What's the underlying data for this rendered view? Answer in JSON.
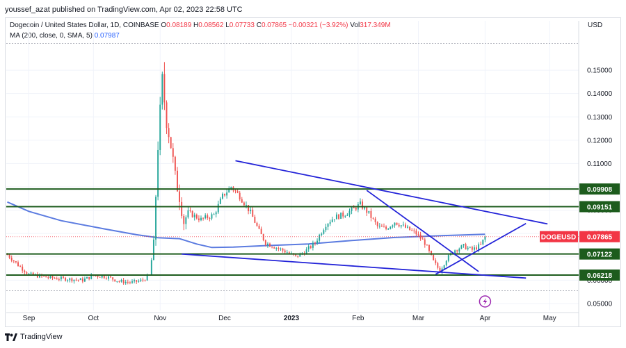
{
  "header": {
    "publisher_text": "youssef_azat published on TradingView.com, Apr 02, 2023 22:58 UTC"
  },
  "legend": {
    "symbol": "Dogecoin / United States Dollar, 1D, COINBASE",
    "o_label": "O",
    "o_value": "0.08189",
    "h_label": "H",
    "h_value": "0.08562",
    "l_label": "L",
    "l_value": "0.07733",
    "c_label": "C",
    "c_value": "0.07865",
    "change": "−0.00321 (−3.92%)",
    "vol_label": "Vol",
    "vol_value": "317.349M",
    "ma_text": "MA (200, close, 0, SMA, 5)",
    "ma_value": "0.07987"
  },
  "axis": {
    "currency": "USD"
  },
  "footer": {
    "brand": "TradingView"
  },
  "colors": {
    "up": "#26a69a",
    "down": "#ef5350",
    "ma": "#5b7be0",
    "trendline": "#2323d8",
    "level": "#1d5c1d",
    "price_tag": "#f23645"
  },
  "chart_data": {
    "type": "candlestick",
    "ylim": [
      0.047,
      0.167
    ],
    "y_ticks": [
      "0.05000",
      "0.06000",
      "0.07000",
      "0.08000",
      "0.09000",
      "0.10000",
      "0.11000",
      "0.12000",
      "0.13000",
      "0.14000",
      "0.15000"
    ],
    "x_ticks": [
      {
        "label": "Sep",
        "day": 10
      },
      {
        "label": "Oct",
        "day": 40
      },
      {
        "label": "Nov",
        "day": 71
      },
      {
        "label": "Dec",
        "day": 101
      },
      {
        "label": "2023",
        "day": 132
      },
      {
        "label": "Feb",
        "day": 163
      },
      {
        "label": "Mar",
        "day": 191
      },
      {
        "label": "Apr",
        "day": 222
      },
      {
        "label": "May",
        "day": 252
      }
    ],
    "day_range": [
      -0.5,
      265.5
    ],
    "levels": [
      {
        "price": 0.09908,
        "label": "0.09908"
      },
      {
        "price": 0.09151,
        "label": "0.09151"
      },
      {
        "price": 0.07122,
        "label": "0.07122"
      },
      {
        "price": 0.06218,
        "label": "0.06218"
      }
    ],
    "last_price": {
      "symbol": "DOGEUSD",
      "price": 0.07865,
      "label": "0.07865"
    },
    "ma_points": [
      [
        0,
        0.0935
      ],
      [
        10,
        0.0895
      ],
      [
        25,
        0.0855
      ],
      [
        45,
        0.082
      ],
      [
        60,
        0.0795
      ],
      [
        70,
        0.0782
      ],
      [
        80,
        0.0778
      ],
      [
        88,
        0.0755
      ],
      [
        95,
        0.074
      ],
      [
        105,
        0.0742
      ],
      [
        120,
        0.0748
      ],
      [
        140,
        0.0755
      ],
      [
        160,
        0.077
      ],
      [
        180,
        0.0783
      ],
      [
        200,
        0.079
      ],
      [
        222,
        0.0797
      ]
    ],
    "trendlines": [
      [
        [
          106,
          0.1112
        ],
        [
          251,
          0.0841
        ]
      ],
      [
        [
          81,
          0.0712
        ],
        [
          241,
          0.0609
        ]
      ],
      [
        [
          167,
          0.0985
        ],
        [
          219,
          0.0637
        ]
      ],
      [
        [
          199,
          0.0625
        ],
        [
          241,
          0.0843
        ]
      ]
    ],
    "candle_waypoints": [
      [
        0,
        0.071
      ],
      [
        5,
        0.0665
      ],
      [
        10,
        0.0625
      ],
      [
        20,
        0.061
      ],
      [
        28,
        0.0605
      ],
      [
        35,
        0.06
      ],
      [
        40,
        0.062
      ],
      [
        46,
        0.0615
      ],
      [
        52,
        0.0595
      ],
      [
        58,
        0.059
      ],
      [
        63,
        0.06
      ],
      [
        66,
        0.062
      ],
      [
        68,
        0.075
      ],
      [
        70,
        0.118
      ],
      [
        72,
        0.145
      ],
      [
        74,
        0.129
      ],
      [
        76,
        0.118
      ],
      [
        78,
        0.104
      ],
      [
        80,
        0.096
      ],
      [
        82,
        0.085
      ],
      [
        84,
        0.089
      ],
      [
        90,
        0.086
      ],
      [
        96,
        0.088
      ],
      [
        100,
        0.096
      ],
      [
        104,
        0.1
      ],
      [
        108,
        0.096
      ],
      [
        113,
        0.089
      ],
      [
        117,
        0.081
      ],
      [
        120,
        0.076
      ],
      [
        125,
        0.074
      ],
      [
        130,
        0.072
      ],
      [
        134,
        0.07
      ],
      [
        138,
        0.072
      ],
      [
        143,
        0.076
      ],
      [
        148,
        0.084
      ],
      [
        152,
        0.087
      ],
      [
        156,
        0.088
      ],
      [
        160,
        0.09
      ],
      [
        164,
        0.0925
      ],
      [
        168,
        0.0885
      ],
      [
        172,
        0.083
      ],
      [
        176,
        0.082
      ],
      [
        180,
        0.085
      ],
      [
        185,
        0.0825
      ],
      [
        190,
        0.08
      ],
      [
        194,
        0.076
      ],
      [
        198,
        0.068
      ],
      [
        201,
        0.064
      ],
      [
        204,
        0.069
      ],
      [
        208,
        0.073
      ],
      [
        212,
        0.0745
      ],
      [
        216,
        0.073
      ],
      [
        220,
        0.075
      ],
      [
        222,
        0.0787
      ]
    ]
  }
}
